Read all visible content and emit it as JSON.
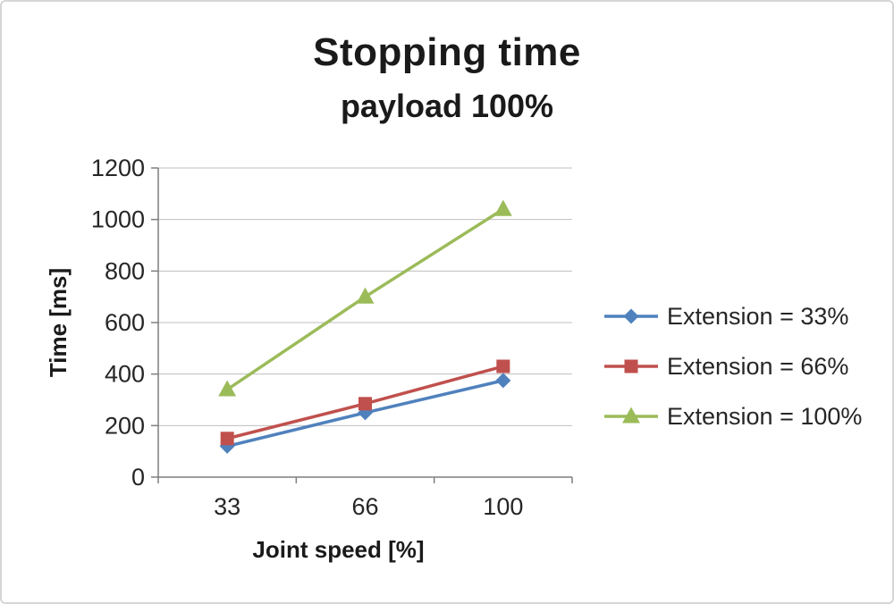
{
  "chart_data": {
    "type": "line",
    "title": "Stopping time",
    "subtitle": "payload 100%",
    "xlabel": "Joint speed [%]",
    "ylabel": "Time [ms]",
    "categories": [
      "33",
      "66",
      "100"
    ],
    "series": [
      {
        "name": "Extension = 33%",
        "values": [
          120,
          250,
          375
        ],
        "color": "#4F81BD",
        "marker": "diamond"
      },
      {
        "name": "Extension = 66%",
        "values": [
          150,
          285,
          430
        ],
        "color": "#C0504D",
        "marker": "square"
      },
      {
        "name": "Extension = 100%",
        "values": [
          340,
          700,
          1040
        ],
        "color": "#9BBB59",
        "marker": "triangle"
      }
    ],
    "ylim": [
      0,
      1200
    ],
    "ytick_step": 200,
    "grid": true,
    "legend_position": "right"
  }
}
